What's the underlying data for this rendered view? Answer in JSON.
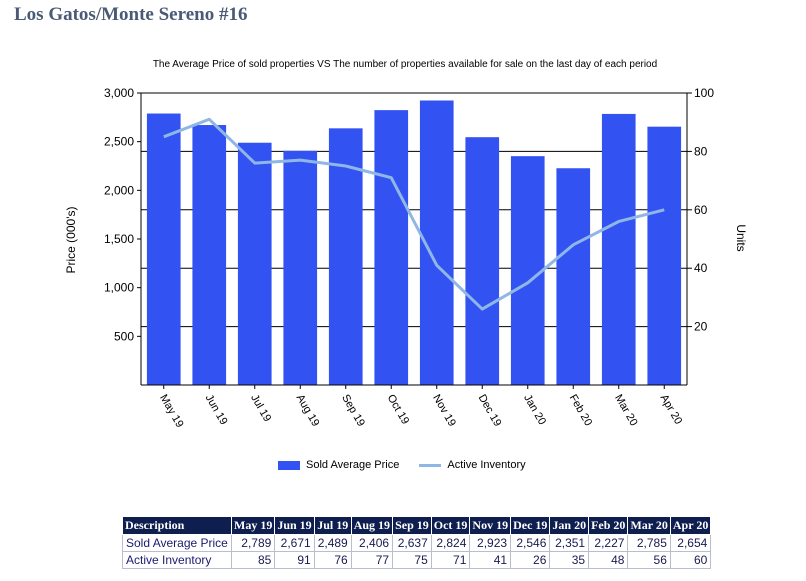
{
  "page_title": "Los Gatos/Monte Sereno #16",
  "colors": {
    "bars": "#3352f2",
    "line": "#8fb7e6",
    "title": "#4a5a75",
    "table_header": "#0e1e4e"
  },
  "chart_data": {
    "type": "bar",
    "title": "The Average Price of sold properties VS The number of properties available for sale on the last day of each period",
    "categories": [
      "May 19",
      "Jun 19",
      "Jul 19",
      "Aug 19",
      "Sep 19",
      "Oct 19",
      "Nov 19",
      "Dec 19",
      "Jan 20",
      "Feb 20",
      "Mar 20",
      "Apr 20"
    ],
    "series": [
      {
        "name": "Sold Average Price",
        "type": "bar",
        "axis": "left",
        "values": [
          2789,
          2671,
          2489,
          2406,
          2637,
          2824,
          2923,
          2546,
          2351,
          2227,
          2785,
          2654
        ]
      },
      {
        "name": "Active Inventory",
        "type": "line",
        "axis": "right",
        "values": [
          85,
          91,
          76,
          77,
          75,
          71,
          41,
          26,
          35,
          48,
          56,
          60
        ]
      }
    ],
    "ylabel": "Price (000's)",
    "y2label": "Units",
    "ylim": [
      0,
      3000
    ],
    "y2lim": [
      0,
      100
    ],
    "yticks": [
      "500",
      "1,000",
      "1,500",
      "2,000",
      "2,500",
      "3,000"
    ],
    "y2ticks": [
      "20",
      "40",
      "60",
      "80",
      "100"
    ],
    "grid": true,
    "legend": "bottom"
  },
  "table": {
    "headers": [
      "Description",
      "May 19",
      "Jun 19",
      "Jul 19",
      "Aug 19",
      "Sep 19",
      "Oct 19",
      "Nov 19",
      "Dec 19",
      "Jan 20",
      "Feb 20",
      "Mar 20",
      "Apr 20"
    ],
    "rows": [
      {
        "label": "Sold Average Price",
        "values": [
          "2,789",
          "2,671",
          "2,489",
          "2,406",
          "2,637",
          "2,824",
          "2,923",
          "2,546",
          "2,351",
          "2,227",
          "2,785",
          "2,654"
        ]
      },
      {
        "label": "Active Inventory",
        "values": [
          "85",
          "91",
          "76",
          "77",
          "75",
          "71",
          "41",
          "26",
          "35",
          "48",
          "56",
          "60"
        ]
      }
    ]
  }
}
